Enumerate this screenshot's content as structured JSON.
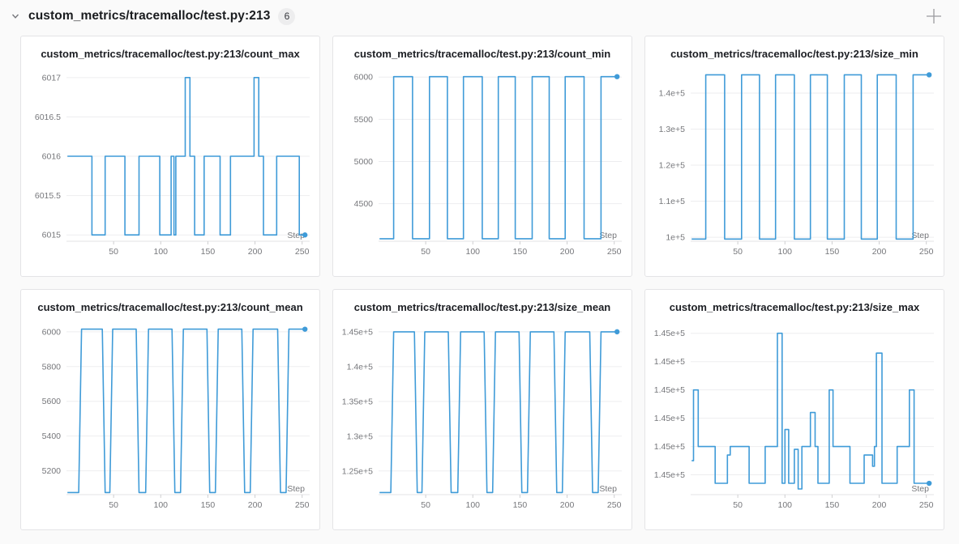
{
  "header": {
    "title": "custom_metrics/tracemalloc/test.py:213",
    "badge_count": "6",
    "icons": {
      "collapse": "chevron-down",
      "add": "plus"
    }
  },
  "colors": {
    "line": "#3f9bd8",
    "grid": "#ededef",
    "baseline": "#e3e3e5",
    "tick": "#cfcfd1",
    "axis_text": "#76777b",
    "card_border": "#e4e4e6",
    "title_text": "#1c1e23",
    "icon_gray": "#9b9b9f"
  },
  "chart_data": [
    {
      "type": "line",
      "title": "custom_metrics/tracemalloc/test.py:213/count_max",
      "xlabel": "Step",
      "xlim": [
        0,
        258
      ],
      "x_ticks": [
        50,
        100,
        150,
        200,
        250
      ],
      "ylim": [
        6014.92,
        6017.06
      ],
      "y_ticks": [
        6017,
        6016.5,
        6016,
        6015.5,
        6015
      ],
      "y_tick_labels": [
        "6017",
        "6016.5",
        "6016",
        "6015.5",
        "6015"
      ],
      "points": [
        [
          1,
          6016
        ],
        [
          27,
          6016
        ],
        [
          27,
          6015
        ],
        [
          41,
          6015
        ],
        [
          41,
          6016
        ],
        [
          62,
          6016
        ],
        [
          62,
          6015
        ],
        [
          77,
          6015
        ],
        [
          77,
          6016
        ],
        [
          99,
          6016
        ],
        [
          99,
          6015
        ],
        [
          111,
          6015
        ],
        [
          111,
          6016
        ],
        [
          114,
          6016
        ],
        [
          114,
          6015
        ],
        [
          116,
          6015
        ],
        [
          116,
          6016
        ],
        [
          126,
          6016
        ],
        [
          126,
          6017
        ],
        [
          131,
          6017
        ],
        [
          131,
          6016
        ],
        [
          136,
          6016
        ],
        [
          136,
          6015
        ],
        [
          146,
          6015
        ],
        [
          146,
          6016
        ],
        [
          163,
          6016
        ],
        [
          163,
          6015
        ],
        [
          174,
          6015
        ],
        [
          174,
          6016
        ],
        [
          199,
          6016
        ],
        [
          199,
          6017
        ],
        [
          204,
          6017
        ],
        [
          204,
          6016
        ],
        [
          209,
          6016
        ],
        [
          209,
          6015
        ],
        [
          223,
          6015
        ],
        [
          223,
          6016
        ],
        [
          247,
          6016
        ],
        [
          247,
          6015
        ],
        [
          253,
          6015
        ]
      ],
      "end_dot": [
        253,
        6015
      ]
    },
    {
      "type": "line",
      "title": "custom_metrics/tracemalloc/test.py:213/count_min",
      "xlabel": "Step",
      "xlim": [
        0,
        258
      ],
      "x_ticks": [
        50,
        100,
        150,
        200,
        250
      ],
      "ylim": [
        4055,
        6050
      ],
      "y_ticks": [
        6000,
        5500,
        5000,
        4500
      ],
      "y_tick_labels": [
        "6000",
        "5500",
        "5000",
        "4500"
      ],
      "points": [
        [
          1,
          4085
        ],
        [
          16,
          4085
        ],
        [
          16,
          6005
        ],
        [
          36,
          6005
        ],
        [
          36,
          4085
        ],
        [
          54,
          4085
        ],
        [
          54,
          6005
        ],
        [
          73,
          6005
        ],
        [
          73,
          4085
        ],
        [
          90,
          4085
        ],
        [
          90,
          6005
        ],
        [
          110,
          6005
        ],
        [
          110,
          4085
        ],
        [
          127,
          4085
        ],
        [
          127,
          6005
        ],
        [
          145,
          6005
        ],
        [
          145,
          4085
        ],
        [
          163,
          4085
        ],
        [
          163,
          6005
        ],
        [
          181,
          6005
        ],
        [
          181,
          4085
        ],
        [
          198,
          4085
        ],
        [
          198,
          6005
        ],
        [
          218,
          6005
        ],
        [
          218,
          4085
        ],
        [
          236,
          4085
        ],
        [
          236,
          6005
        ],
        [
          253,
          6005
        ]
      ],
      "end_dot": [
        253,
        6005
      ]
    },
    {
      "type": "line",
      "title": "custom_metrics/tracemalloc/test.py:213/size_min",
      "xlabel": "Step",
      "xlim": [
        0,
        258
      ],
      "x_ticks": [
        50,
        100,
        150,
        200,
        250
      ],
      "ylim": [
        98900,
        145600
      ],
      "y_ticks": [
        140000,
        130000,
        120000,
        110000,
        100000
      ],
      "y_tick_labels": [
        "1.4e+5",
        "1.3e+5",
        "1.2e+5",
        "1.1e+5",
        "1e+5"
      ],
      "points": [
        [
          1,
          99500
        ],
        [
          16,
          99500
        ],
        [
          16,
          145050
        ],
        [
          36,
          145050
        ],
        [
          36,
          99500
        ],
        [
          54,
          99500
        ],
        [
          54,
          145050
        ],
        [
          73,
          145050
        ],
        [
          73,
          99500
        ],
        [
          90,
          99500
        ],
        [
          90,
          145050
        ],
        [
          110,
          145050
        ],
        [
          110,
          99500
        ],
        [
          127,
          99500
        ],
        [
          127,
          145050
        ],
        [
          145,
          145050
        ],
        [
          145,
          99500
        ],
        [
          163,
          99500
        ],
        [
          163,
          145050
        ],
        [
          181,
          145050
        ],
        [
          181,
          99500
        ],
        [
          198,
          99500
        ],
        [
          198,
          145050
        ],
        [
          218,
          145050
        ],
        [
          218,
          99500
        ],
        [
          236,
          99500
        ],
        [
          236,
          145050
        ],
        [
          253,
          145050
        ]
      ],
      "end_dot": [
        253,
        145050
      ]
    },
    {
      "type": "line",
      "title": "custom_metrics/tracemalloc/test.py:213/count_mean",
      "xlabel": "Step",
      "xlim": [
        0,
        258
      ],
      "x_ticks": [
        50,
        100,
        150,
        200,
        250
      ],
      "ylim": [
        5063,
        6032
      ],
      "y_ticks": [
        6000,
        5800,
        5600,
        5400,
        5200
      ],
      "y_tick_labels": [
        "6000",
        "5800",
        "5600",
        "5400",
        "5200"
      ],
      "points": [
        [
          1,
          5075
        ],
        [
          13,
          5075
        ],
        [
          16,
          6015
        ],
        [
          38,
          6015
        ],
        [
          41,
          5075
        ],
        [
          46,
          5075
        ],
        [
          49,
          6015
        ],
        [
          74,
          6015
        ],
        [
          77,
          5075
        ],
        [
          84,
          5075
        ],
        [
          87,
          6015
        ],
        [
          112,
          6015
        ],
        [
          115,
          5075
        ],
        [
          121,
          5075
        ],
        [
          124,
          6015
        ],
        [
          149,
          6015
        ],
        [
          152,
          5075
        ],
        [
          158,
          5075
        ],
        [
          161,
          6015
        ],
        [
          186,
          6015
        ],
        [
          189,
          5075
        ],
        [
          195,
          5075
        ],
        [
          198,
          6015
        ],
        [
          224,
          6015
        ],
        [
          227,
          5075
        ],
        [
          233,
          5075
        ],
        [
          236,
          6015
        ],
        [
          253,
          6015
        ]
      ],
      "end_dot": [
        253,
        6015
      ]
    },
    {
      "type": "line",
      "title": "custom_metrics/tracemalloc/test.py:213/size_mean",
      "xlabel": "Step",
      "xlim": [
        0,
        258
      ],
      "x_ticks": [
        50,
        100,
        150,
        200,
        250
      ],
      "ylim": [
        121600,
        145800
      ],
      "y_ticks": [
        145000,
        140000,
        135000,
        130000,
        125000
      ],
      "y_tick_labels": [
        "1.45e+5",
        "1.4e+5",
        "1.35e+5",
        "1.3e+5",
        "1.25e+5"
      ],
      "points": [
        [
          1,
          121900
        ],
        [
          13,
          121900
        ],
        [
          16,
          145000
        ],
        [
          38,
          145000
        ],
        [
          41,
          121900
        ],
        [
          46,
          121900
        ],
        [
          49,
          145000
        ],
        [
          74,
          145000
        ],
        [
          77,
          121900
        ],
        [
          84,
          121900
        ],
        [
          87,
          145000
        ],
        [
          112,
          145000
        ],
        [
          115,
          121900
        ],
        [
          121,
          121900
        ],
        [
          124,
          145000
        ],
        [
          149,
          145000
        ],
        [
          152,
          121900
        ],
        [
          158,
          121900
        ],
        [
          161,
          145000
        ],
        [
          186,
          145000
        ],
        [
          189,
          121900
        ],
        [
          195,
          121900
        ],
        [
          198,
          145000
        ],
        [
          224,
          145000
        ],
        [
          227,
          121900
        ],
        [
          233,
          121900
        ],
        [
          236,
          145000
        ],
        [
          253,
          145000
        ]
      ],
      "end_dot": [
        253,
        145000
      ]
    },
    {
      "type": "line",
      "title": "custom_metrics/tracemalloc/test.py:213/size_max",
      "xlabel": "Step",
      "xlim": [
        0,
        258
      ],
      "x_ticks": [
        50,
        100,
        150,
        200,
        250
      ],
      "ylim": [
        144943,
        145002.5
      ],
      "y_ticks": [
        145000,
        144990,
        144980,
        144970,
        144960,
        144950
      ],
      "y_tick_labels": [
        "1.45e+5",
        "1.45e+5",
        "1.45e+5",
        "1.45e+5",
        "1.45e+5",
        "1.45e+5"
      ],
      "points": [
        [
          1,
          144955
        ],
        [
          3,
          144955
        ],
        [
          3,
          144980
        ],
        [
          8,
          144980
        ],
        [
          8,
          144960
        ],
        [
          26,
          144960
        ],
        [
          26,
          144947
        ],
        [
          39,
          144947
        ],
        [
          39,
          144957
        ],
        [
          42,
          144957
        ],
        [
          42,
          144960
        ],
        [
          62,
          144960
        ],
        [
          62,
          144947
        ],
        [
          79,
          144947
        ],
        [
          79,
          144960
        ],
        [
          92,
          144960
        ],
        [
          92,
          145000
        ],
        [
          97,
          145000
        ],
        [
          97,
          144947
        ],
        [
          100,
          144947
        ],
        [
          100,
          144966
        ],
        [
          104,
          144966
        ],
        [
          104,
          144947
        ],
        [
          110,
          144947
        ],
        [
          110,
          144959
        ],
        [
          114,
          144959
        ],
        [
          114,
          144945
        ],
        [
          118,
          144945
        ],
        [
          118,
          144960
        ],
        [
          127,
          144960
        ],
        [
          127,
          144972
        ],
        [
          132,
          144972
        ],
        [
          132,
          144960
        ],
        [
          135,
          144960
        ],
        [
          135,
          144947
        ],
        [
          147,
          144947
        ],
        [
          147,
          144980
        ],
        [
          151,
          144980
        ],
        [
          151,
          144960
        ],
        [
          169,
          144960
        ],
        [
          169,
          144947
        ],
        [
          184,
          144947
        ],
        [
          184,
          144957
        ],
        [
          193,
          144957
        ],
        [
          193,
          144953
        ],
        [
          195,
          144953
        ],
        [
          195,
          144960
        ],
        [
          197,
          144960
        ],
        [
          197,
          144993
        ],
        [
          203,
          144993
        ],
        [
          203,
          144947
        ],
        [
          219,
          144947
        ],
        [
          219,
          144960
        ],
        [
          232,
          144960
        ],
        [
          232,
          144980
        ],
        [
          237,
          144980
        ],
        [
          237,
          144947
        ],
        [
          253,
          144947
        ]
      ],
      "end_dot": [
        253,
        144947
      ]
    }
  ]
}
